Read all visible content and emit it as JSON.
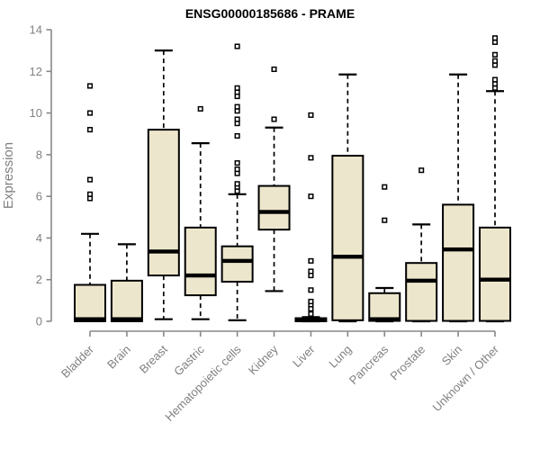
{
  "chart_data": {
    "type": "boxplot",
    "title": "ENSG00000185686 - PRAME",
    "ylabel": "Expression",
    "xlabel": "",
    "ylim": [
      0,
      14
    ],
    "yticks": [
      0,
      2,
      4,
      6,
      8,
      10,
      12,
      14
    ],
    "grid": false,
    "legend": "none",
    "colors": {
      "box_fill": "#ece6cc",
      "box_stroke": "#000000",
      "median": "#000000",
      "whisker": "#000000",
      "axis": "#888888",
      "tick_label": "#808080",
      "axis_label": "#808080",
      "title": "#000000",
      "background": "#ffffff"
    },
    "categories": [
      "Bladder",
      "Brain",
      "Breast",
      "Gastric",
      "Hematopoietic cells",
      "Kidney",
      "Liver",
      "Lung",
      "Pancreas",
      "Prostate",
      "Skin",
      "Unknown / Other"
    ],
    "series": [
      {
        "name": "Bladder",
        "whisker_low": 0.05,
        "q1": 0.0,
        "median": 0.1,
        "q3": 1.75,
        "whisker_high": 4.2,
        "outliers": [
          5.9,
          6.1,
          6.8,
          9.2,
          10.0,
          11.3
        ]
      },
      {
        "name": "Brain",
        "whisker_low": 0.05,
        "q1": 0.0,
        "median": 0.1,
        "q3": 1.95,
        "whisker_high": 3.7,
        "outliers": []
      },
      {
        "name": "Breast",
        "whisker_low": 0.1,
        "q1": 2.2,
        "median": 3.35,
        "q3": 9.2,
        "whisker_high": 13.0,
        "outliers": []
      },
      {
        "name": "Gastric",
        "whisker_low": 0.1,
        "q1": 1.25,
        "median": 2.2,
        "q3": 4.5,
        "whisker_high": 8.55,
        "outliers": [
          10.2
        ]
      },
      {
        "name": "Hematopoietic cells",
        "whisker_low": 0.05,
        "q1": 1.9,
        "median": 2.9,
        "q3": 3.6,
        "whisker_high": 6.1,
        "outliers": [
          6.25,
          6.45,
          6.6,
          7.1,
          7.3,
          7.6,
          8.9,
          9.5,
          9.7,
          10.1,
          10.3,
          10.8,
          11.0,
          11.2,
          13.2
        ]
      },
      {
        "name": "Kidney",
        "whisker_low": 1.45,
        "q1": 4.4,
        "median": 5.25,
        "q3": 6.5,
        "whisker_high": 9.3,
        "outliers": [
          9.7,
          12.1
        ]
      },
      {
        "name": "Liver",
        "whisker_low": 0.0,
        "q1": 0.0,
        "median": 0.08,
        "q3": 0.15,
        "whisker_high": 0.2,
        "outliers": [
          0.35,
          0.6,
          0.8,
          0.95,
          1.5,
          2.2,
          2.4,
          2.9,
          6.0,
          7.85,
          9.9
        ]
      },
      {
        "name": "Lung",
        "whisker_low": 0.0,
        "q1": 0.05,
        "median": 3.1,
        "q3": 7.95,
        "whisker_high": 11.85,
        "outliers": []
      },
      {
        "name": "Pancreas",
        "whisker_low": 0.0,
        "q1": 0.02,
        "median": 0.1,
        "q3": 1.35,
        "whisker_high": 1.6,
        "outliers": [
          4.85,
          6.45
        ]
      },
      {
        "name": "Prostate",
        "whisker_low": 0.0,
        "q1": 0.02,
        "median": 1.95,
        "q3": 2.8,
        "whisker_high": 4.65,
        "outliers": [
          7.25
        ]
      },
      {
        "name": "Skin",
        "whisker_low": 0.0,
        "q1": 0.02,
        "median": 3.45,
        "q3": 5.6,
        "whisker_high": 11.85,
        "outliers": []
      },
      {
        "name": "Unknown / Other",
        "whisker_low": 0.0,
        "q1": 0.02,
        "median": 2.0,
        "q3": 4.5,
        "whisker_high": 11.05,
        "outliers": [
          11.2,
          11.4,
          11.6,
          12.3,
          12.5,
          12.8,
          13.4,
          13.6
        ]
      }
    ]
  }
}
